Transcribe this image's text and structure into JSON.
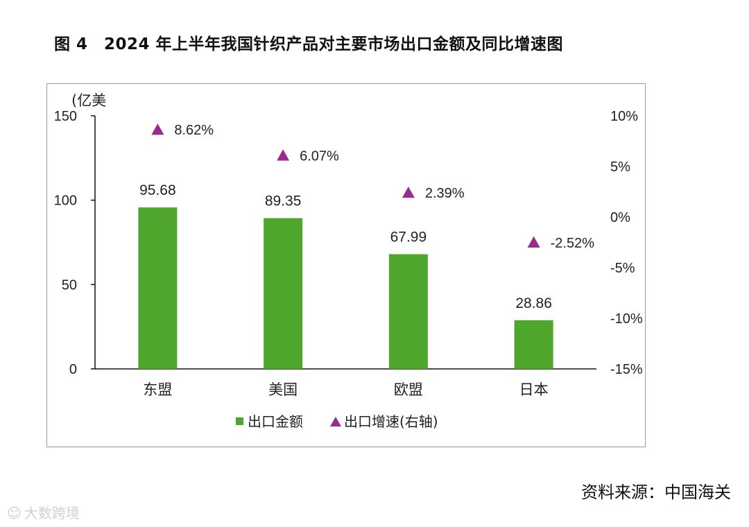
{
  "title": "图 4　2024 年上半年我国针织产品对主要市场出口金额及同比增速图",
  "source": "资料来源：中国海关",
  "watermark": "大数跨境",
  "colors": {
    "bar": "#4ea72c",
    "marker": "#9b2a8f",
    "axis": "#111111",
    "frame": "#9a9a9a"
  },
  "chart_data": {
    "type": "bar",
    "y_unit_label": "(亿美",
    "categories": [
      "东盟",
      "美国",
      "欧盟",
      "日本"
    ],
    "series": [
      {
        "name": "出口金额",
        "axis": "left",
        "kind": "bar",
        "values": [
          95.68,
          89.35,
          67.99,
          28.86
        ],
        "labels": [
          "95.68",
          "89.35",
          "67.99",
          "28.86"
        ]
      },
      {
        "name": "出口增速(右轴)",
        "axis": "right",
        "kind": "marker",
        "values": [
          8.62,
          6.07,
          2.39,
          -2.52
        ],
        "labels": [
          "8.62%",
          "6.07%",
          "2.39%",
          "-2.52%"
        ]
      }
    ],
    "left_axis": {
      "range": [
        0,
        150
      ],
      "ticks": [
        0,
        50,
        100,
        150
      ],
      "tick_labels": [
        "0",
        "50",
        "100",
        "150"
      ]
    },
    "right_axis": {
      "range": [
        -15,
        10
      ],
      "ticks": [
        10,
        5,
        0,
        -5,
        -10,
        -15
      ],
      "tick_labels": [
        "10%",
        "5%",
        "0%",
        "-5%",
        "-10%",
        "-15%"
      ]
    },
    "legend": {
      "position": "bottom",
      "items": [
        "出口金额",
        "出口增速(右轴)"
      ]
    }
  }
}
